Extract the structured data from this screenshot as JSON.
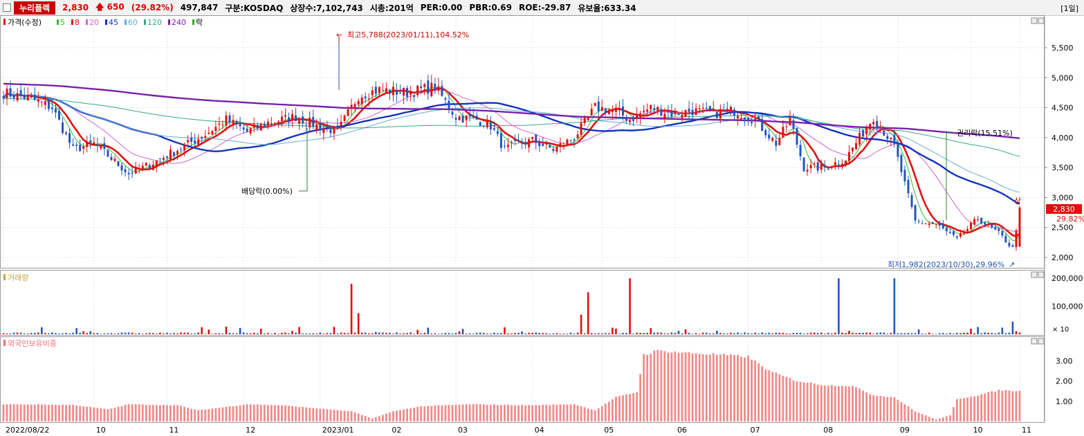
{
  "header": {
    "stock_name": "누리플렉",
    "price": "2,830",
    "change": "650",
    "change_pct": "(29.82%)",
    "volume": "497,847",
    "market": "구분:KOSDAQ",
    "shares": "상장수:7,102,743",
    "mcap": "시총:201억",
    "per": "PER:0.00",
    "pbr": "PBR:0.69",
    "roe": "ROE:-29.87",
    "retention": "유보율:633.34",
    "period": "[1일]"
  },
  "legend": {
    "price_label": "가격(수정)",
    "ma": [
      {
        "label": "5",
        "color": "#33bb33"
      },
      {
        "label": "8",
        "color": "#e01010"
      },
      {
        "label": "20",
        "color": "#cc66cc"
      },
      {
        "label": "45",
        "color": "#1133bb"
      },
      {
        "label": "60",
        "color": "#66aadd"
      },
      {
        "label": "120",
        "color": "#33aa88"
      },
      {
        "label": "240",
        "color": "#7722aa"
      }
    ],
    "rak": "락",
    "volume_label": "거래량",
    "foreign_label": "외국인보유비중"
  },
  "annotations": {
    "high": "최고5,788(2023/01/11),104.52%",
    "low": "최저1,982(2023/10/30),29.96%",
    "dividend": "배당락(0.00%)",
    "rights": "권리락(15.51%)",
    "limit_up": "상",
    "current_price": "2,830",
    "current_pct": "29.82%"
  },
  "chart_data": {
    "type": "candlestick",
    "x_ticks": [
      "2022/08/22",
      "10",
      "11",
      "12",
      "2023/01",
      "02",
      "03",
      "04",
      "05",
      "06",
      "07",
      "08",
      "09",
      "10",
      "11"
    ],
    "price_axis": {
      "ticks": [
        "5,500",
        "5,000",
        "4,500",
        "4,000",
        "3,500",
        "3,000",
        "2,500",
        "2,000"
      ],
      "ylim": [
        1850,
        5950
      ]
    },
    "volume_axis": {
      "ticks": [
        "200,000",
        "100,000"
      ],
      "unit": "× 10"
    },
    "foreign_axis": {
      "ticks": [
        "3.00",
        "2.00",
        "1.00"
      ],
      "ylim": [
        0,
        3.9
      ]
    },
    "price_anchors": [
      [
        0,
        4750
      ],
      [
        8,
        4650
      ],
      [
        14,
        4500
      ],
      [
        20,
        3800
      ],
      [
        26,
        3900
      ],
      [
        30,
        3700
      ],
      [
        36,
        3400
      ],
      [
        42,
        3550
      ],
      [
        50,
        3800
      ],
      [
        58,
        4050
      ],
      [
        64,
        4300
      ],
      [
        70,
        4100
      ],
      [
        76,
        4250
      ],
      [
        84,
        4350
      ],
      [
        90,
        4200
      ],
      [
        96,
        4100
      ],
      [
        102,
        4700
      ],
      [
        108,
        4800
      ],
      [
        116,
        4750
      ],
      [
        124,
        4850
      ],
      [
        130,
        4350
      ],
      [
        136,
        4300
      ],
      [
        140,
        4200
      ],
      [
        144,
        3800
      ],
      [
        148,
        3900
      ],
      [
        152,
        3950
      ],
      [
        158,
        3800
      ],
      [
        164,
        4000
      ],
      [
        170,
        4500
      ],
      [
        176,
        4450
      ],
      [
        180,
        4300
      ],
      [
        186,
        4500
      ],
      [
        192,
        4400
      ],
      [
        198,
        4450
      ],
      [
        204,
        4400
      ],
      [
        210,
        4450
      ],
      [
        216,
        4300
      ],
      [
        222,
        3900
      ],
      [
        226,
        4300
      ],
      [
        230,
        3500
      ],
      [
        236,
        3500
      ],
      [
        242,
        3650
      ],
      [
        250,
        4350
      ],
      [
        256,
        3850
      ],
      [
        262,
        2600
      ],
      [
        268,
        2550
      ],
      [
        274,
        2300
      ],
      [
        280,
        2650
      ],
      [
        286,
        2400
      ],
      [
        290,
        2150
      ],
      [
        292,
        2830
      ]
    ],
    "volume_spikes": [
      [
        100,
        180000
      ],
      [
        102,
        75000
      ],
      [
        166,
        70000
      ],
      [
        168,
        150000
      ],
      [
        180,
        200000
      ],
      [
        240,
        200000
      ],
      [
        256,
        200000
      ],
      [
        290,
        45000
      ]
    ],
    "foreign_anchors": [
      [
        0,
        0.85
      ],
      [
        20,
        0.82
      ],
      [
        30,
        0.6
      ],
      [
        36,
        0.85
      ],
      [
        50,
        0.8
      ],
      [
        56,
        0.55
      ],
      [
        70,
        0.85
      ],
      [
        80,
        0.8
      ],
      [
        100,
        0.5
      ],
      [
        106,
        0.15
      ],
      [
        112,
        0.5
      ],
      [
        120,
        0.75
      ],
      [
        134,
        0.85
      ],
      [
        150,
        0.8
      ],
      [
        164,
        0.85
      ],
      [
        170,
        0.55
      ],
      [
        176,
        1.2
      ],
      [
        182,
        1.45
      ],
      [
        184,
        3.3
      ],
      [
        188,
        3.5
      ],
      [
        196,
        3.4
      ],
      [
        206,
        3.3
      ],
      [
        214,
        3.2
      ],
      [
        220,
        2.5
      ],
      [
        228,
        2.0
      ],
      [
        236,
        1.8
      ],
      [
        244,
        1.75
      ],
      [
        250,
        1.3
      ],
      [
        256,
        1.2
      ],
      [
        262,
        0.5
      ],
      [
        268,
        0.1
      ],
      [
        272,
        0.3
      ],
      [
        274,
        1.1
      ],
      [
        280,
        1.3
      ],
      [
        286,
        1.55
      ],
      [
        292,
        1.5
      ]
    ],
    "series": [
      {
        "name": "5",
        "window": 5
      },
      {
        "name": "8",
        "window": 8
      },
      {
        "name": "20",
        "window": 20
      },
      {
        "name": "45",
        "window": 45
      },
      {
        "name": "60",
        "window": 60
      },
      {
        "name": "120",
        "window": 120
      },
      {
        "name": "240",
        "window": 240
      }
    ]
  }
}
